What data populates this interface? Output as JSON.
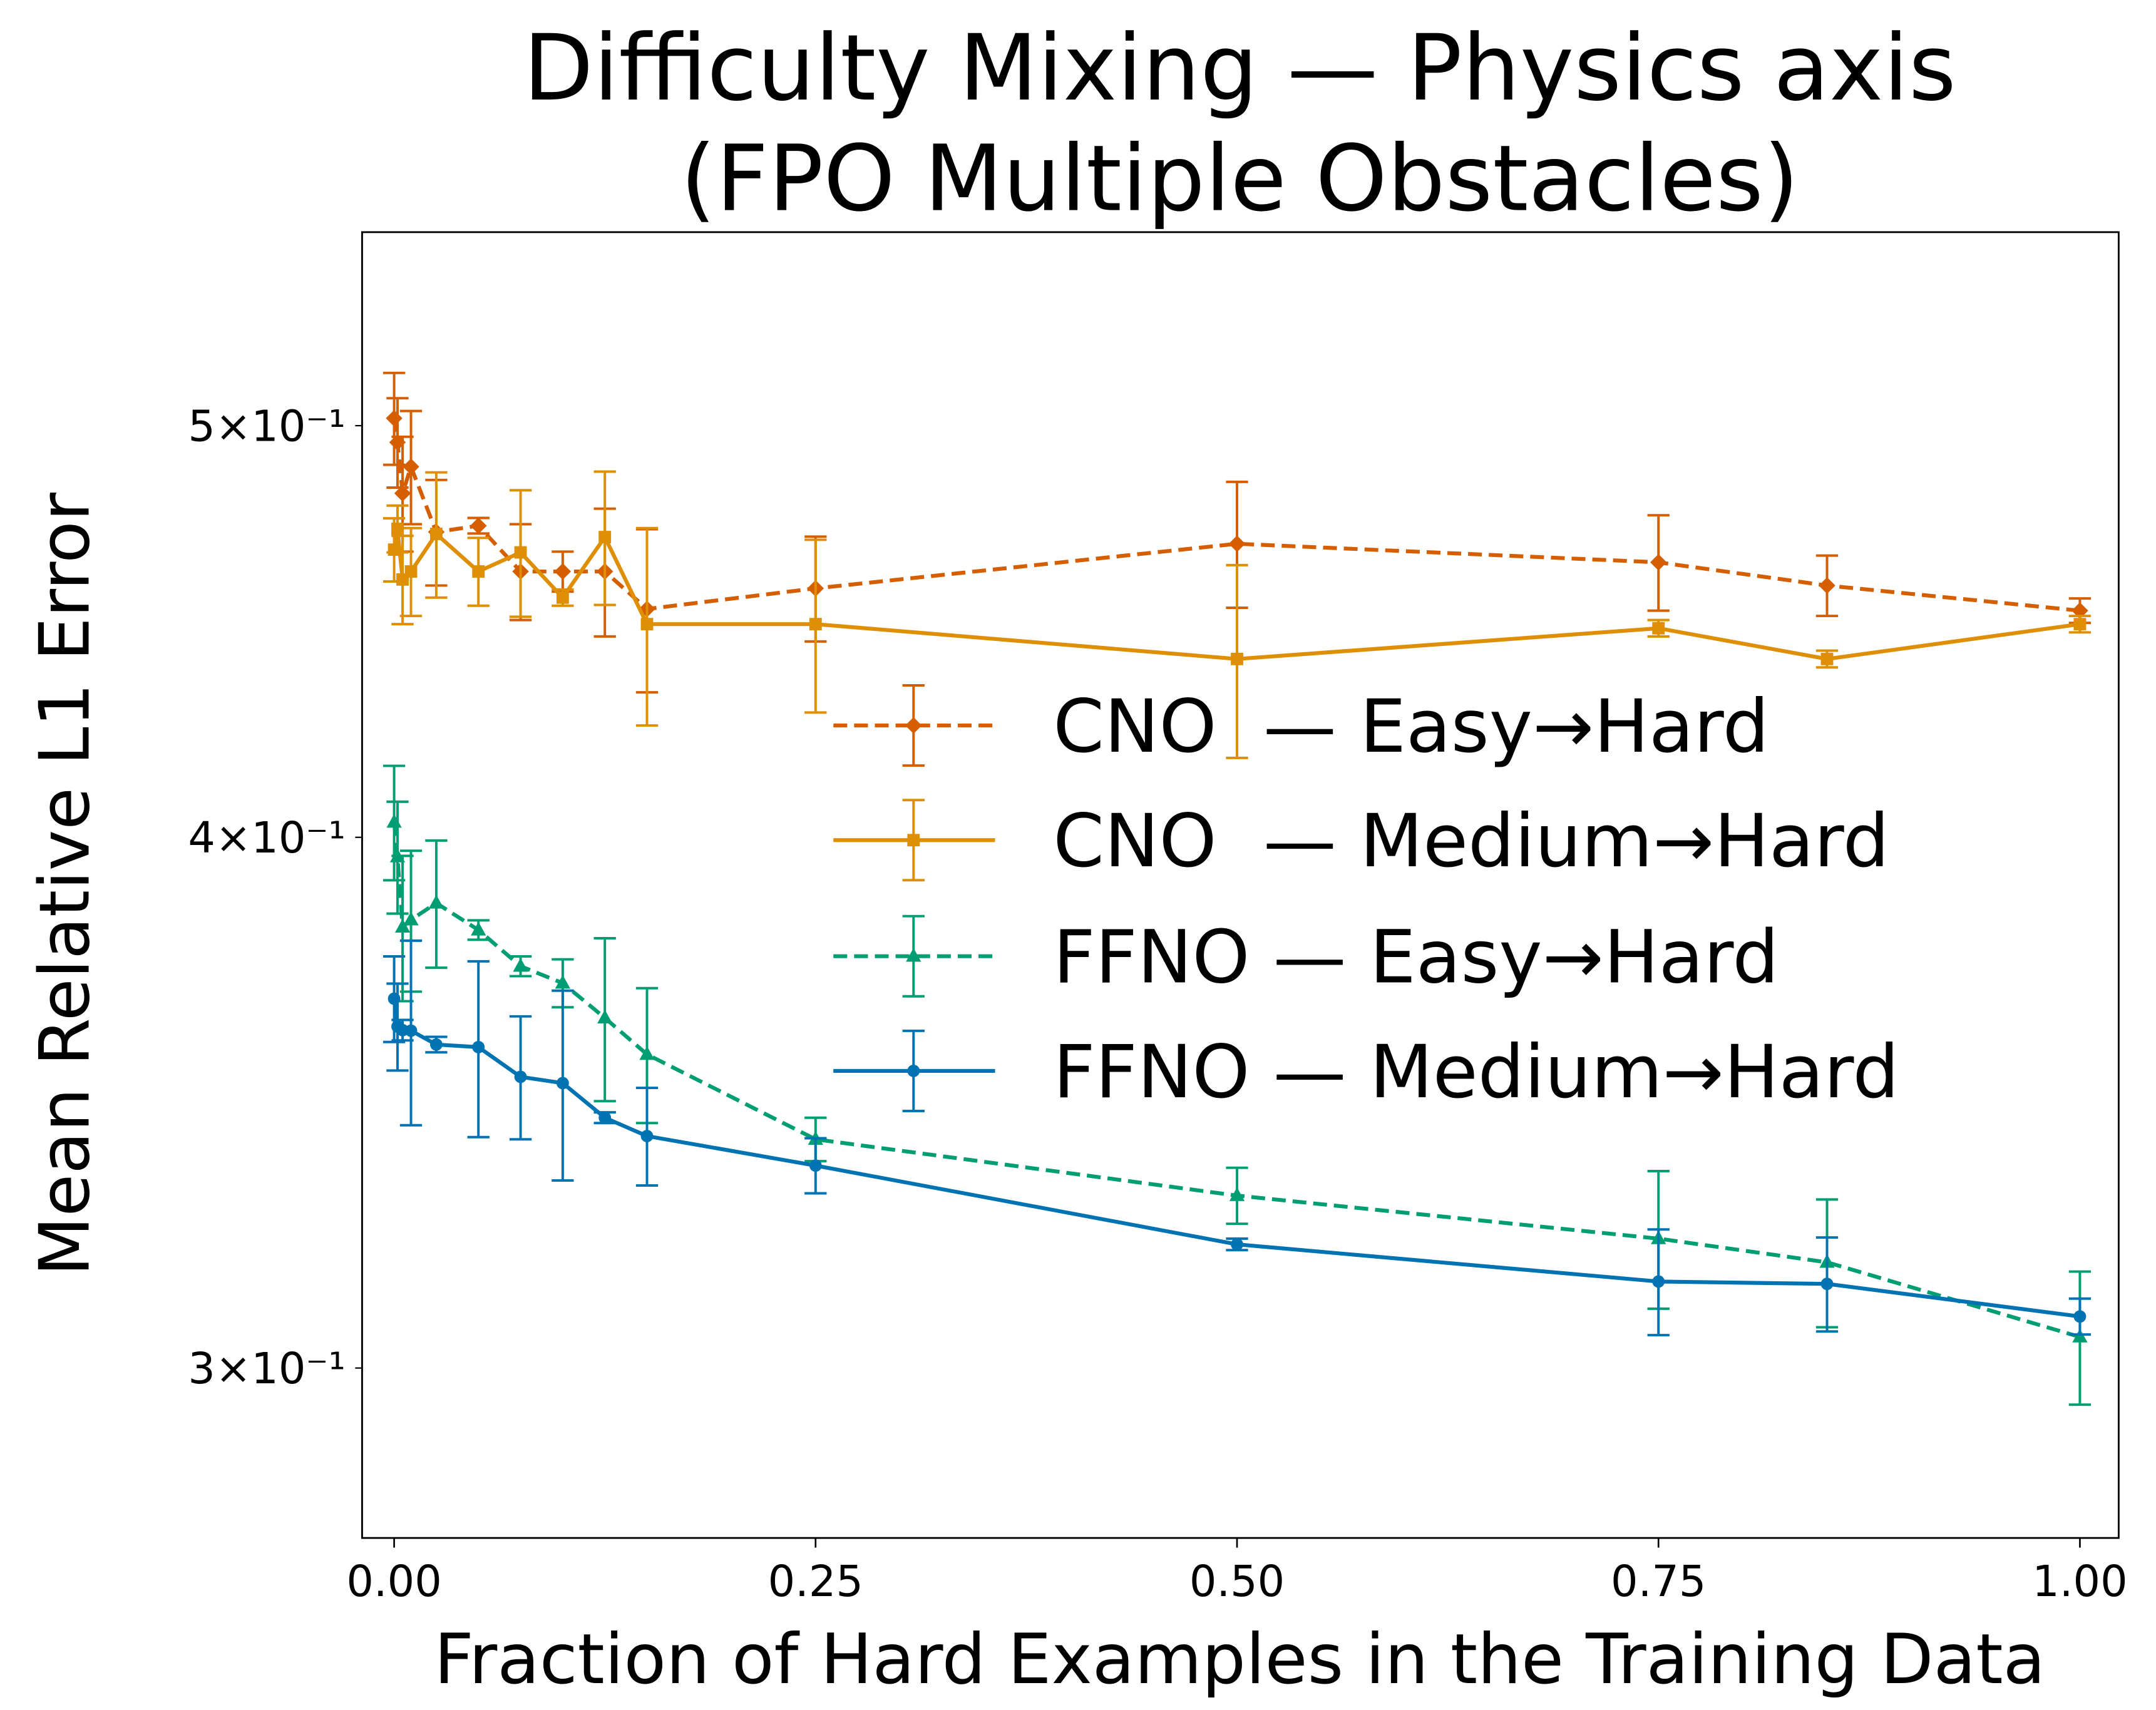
{
  "chart_data": {
    "type": "line",
    "title": [
      "Difficulty Mixing — Physics axis",
      "(FPO Multiple Obstacles)"
    ],
    "xlabel": "Fraction of Hard Examples in the Training Data",
    "ylabel": "Mean Relative L1 Error",
    "xlim": [
      -0.019,
      1.023
    ],
    "ylim": [
      0.2736,
      0.5553
    ],
    "yscale": "log",
    "grid": false,
    "legend_placement": "center-right",
    "xticks": [
      0.0,
      0.25,
      0.5,
      0.75,
      1.0
    ],
    "xtick_labels": [
      "0.00",
      "0.25",
      "0.50",
      "0.75",
      "1.00"
    ],
    "yticks": [
      0.3,
      0.4,
      0.5
    ],
    "ytick_labels": [
      "3×10⁻¹",
      "4×10⁻¹",
      "5×10⁻¹"
    ],
    "x": [
      0,
      0.002,
      0.005,
      0.01,
      0.025,
      0.05,
      0.075,
      0.1,
      0.125,
      0.15,
      0.25,
      0.5,
      0.75,
      0.85,
      1.0
    ],
    "series": [
      {
        "name": "CNO  — Easy→Hard",
        "color": "#D55E00",
        "linestyle": "dashed",
        "marker": "diamond",
        "values": [
          0.502,
          0.4955,
          0.482,
          0.489,
          0.472,
          0.4736,
          0.462,
          0.462,
          0.462,
          0.4527,
          0.4578,
          0.469,
          0.4643,
          0.4585,
          0.4523
        ],
        "errors": [
          0.0125,
          0.012,
          0.015,
          0.015,
          0.0135,
          0.002,
          0.012,
          0.005,
          0.016,
          0.02,
          0.013,
          0.016,
          0.012,
          0.0075,
          0.003
        ]
      },
      {
        "name": "CNO  — Medium→Hard",
        "color": "#DE8F05",
        "linestyle": "solid",
        "marker": "square",
        "values": [
          0.4675,
          0.4728,
          0.46,
          0.462,
          0.4715,
          0.462,
          0.4668,
          0.4555,
          0.4707,
          0.449,
          0.449,
          0.4406,
          0.448,
          0.4406,
          0.449
        ],
        "errors": [
          0.008,
          0.006,
          0.011,
          0.011,
          0.016,
          0.0085,
          0.016,
          0.002,
          0.017,
          0.024,
          0.021,
          0.023,
          0.002,
          0.002,
          0.002
        ]
      },
      {
        "name": "FFNO — Easy→Hard",
        "color": "#029E73",
        "linestyle": "dashed",
        "marker": "triangle",
        "values": [
          0.4033,
          0.3958,
          0.381,
          0.3825,
          0.386,
          0.3804,
          0.373,
          0.3696,
          0.3627,
          0.3556,
          0.3396,
          0.3294,
          0.3218,
          0.3177,
          0.3051
        ],
        "errors": [
          0.0125,
          0.012,
          0.015,
          0.0146,
          0.0133,
          0.002,
          0.002,
          0.0048,
          0.016,
          0.013,
          0.004,
          0.005,
          0.012,
          0.011,
          0.011
        ]
      },
      {
        "name": "FFNO — Medium→Hard",
        "color": "#0173B2",
        "linestyle": "solid",
        "marker": "circle",
        "values": [
          0.3665,
          0.361,
          0.3603,
          0.3602,
          0.3575,
          0.357,
          0.3513,
          0.3501,
          0.3436,
          0.3402,
          0.3348,
          0.3208,
          0.3144,
          0.314,
          0.3085
        ],
        "errors": [
          0.0085,
          0.0085,
          0.002,
          0.018,
          0.0015,
          0.017,
          0.0117,
          0.018,
          0.001,
          0.009,
          0.005,
          0.001,
          0.009,
          0.008,
          0.003
        ]
      }
    ]
  }
}
